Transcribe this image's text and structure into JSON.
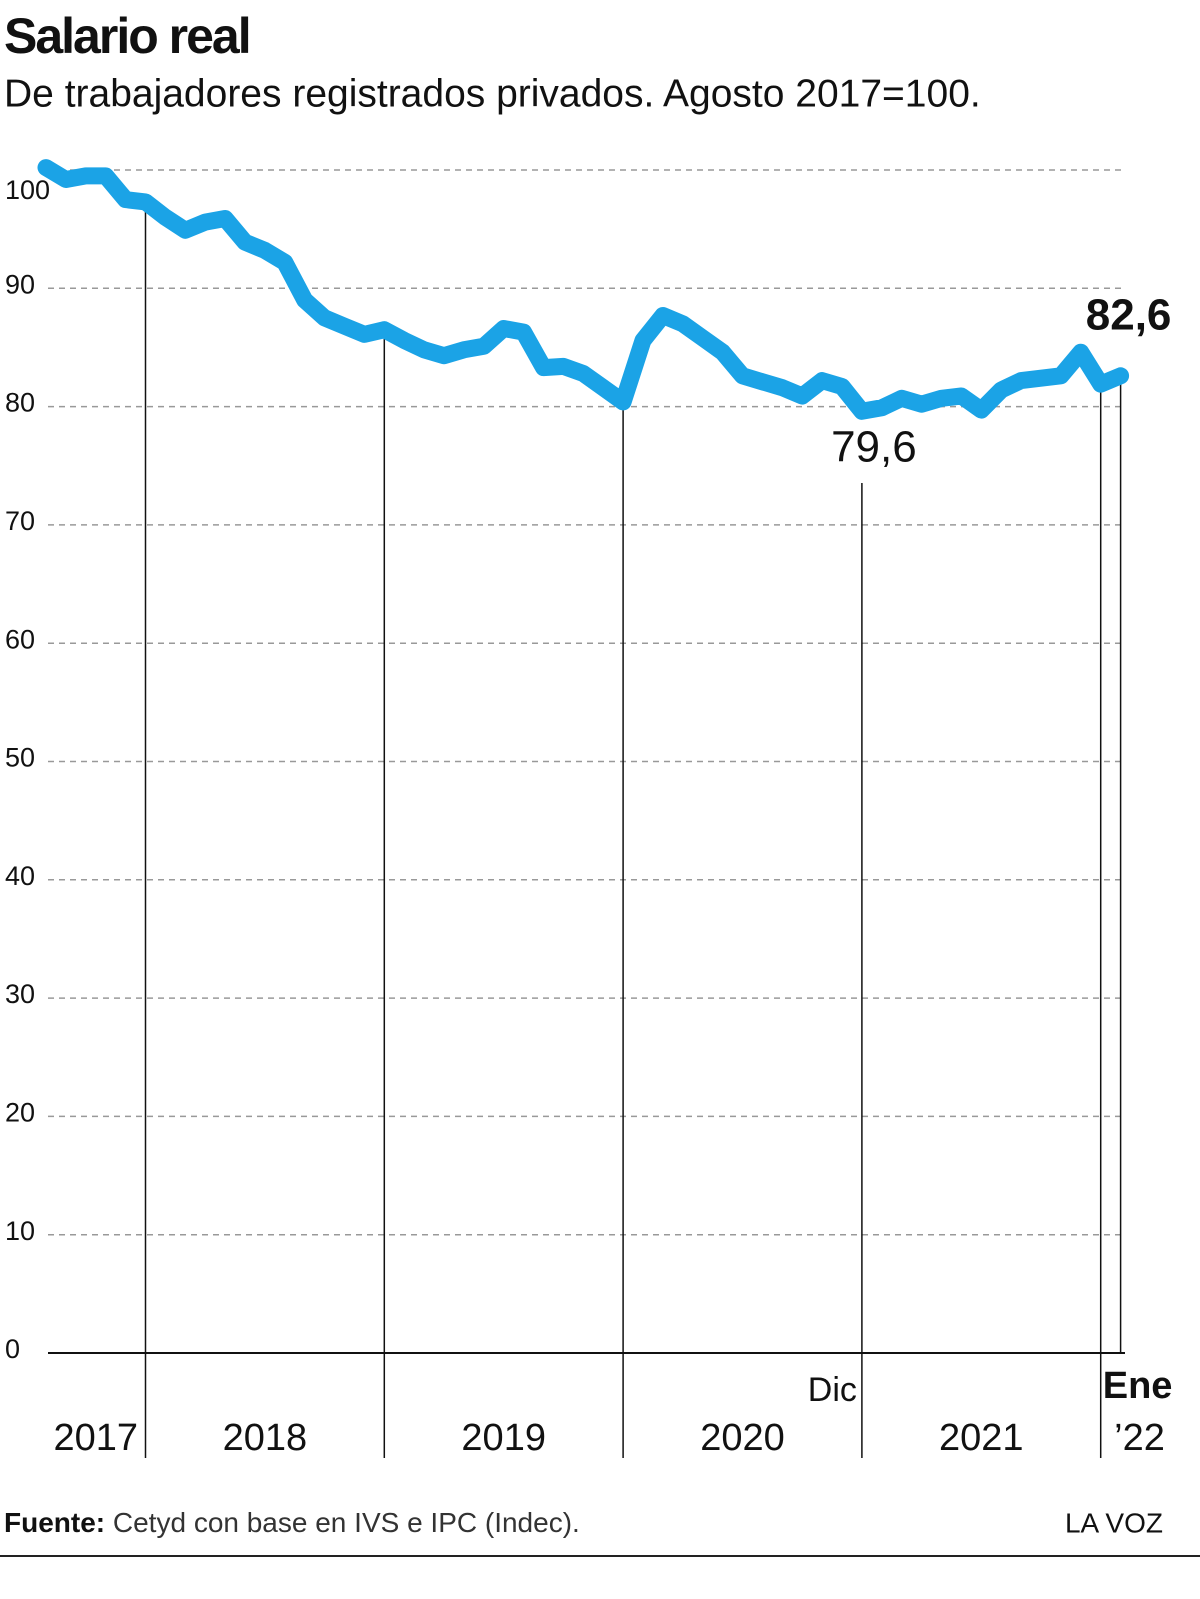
{
  "chart_data": {
    "type": "line",
    "title": "Salario real",
    "subtitle": "De trabajadores registrados privados. Agosto 2017=100.",
    "categories": [
      null,
      null,
      null,
      null,
      null,
      null,
      null,
      null,
      null,
      null,
      null,
      null,
      null,
      null,
      null,
      null,
      null,
      null,
      null,
      null,
      null,
      null,
      null,
      null,
      null,
      null,
      null,
      null,
      null,
      null,
      null,
      null,
      null,
      null,
      null,
      null,
      null,
      null,
      null,
      null,
      null,
      "Dic",
      null,
      null,
      null,
      null,
      null,
      null,
      null,
      null,
      null,
      null,
      null,
      null,
      "Ene"
    ],
    "values": [
      100.2,
      99.2,
      99.5,
      99.5,
      97.5,
      97.3,
      96.0,
      94.9,
      95.6,
      95.9,
      93.9,
      93.2,
      92.2,
      89.0,
      87.5,
      86.8,
      86.1,
      86.5,
      85.6,
      84.8,
      84.3,
      84.8,
      85.1,
      86.6,
      86.3,
      83.3,
      83.4,
      82.8,
      81.6,
      80.4,
      85.6,
      87.7,
      87.0,
      85.8,
      84.6,
      82.6,
      82.1,
      81.6,
      80.9,
      82.2,
      81.7,
      79.6,
      79.9,
      80.7,
      80.2,
      80.7,
      80.9,
      79.7,
      81.4,
      82.2,
      82.4,
      82.6,
      84.6,
      81.9,
      82.6
    ],
    "value_labels": [
      null,
      null,
      null,
      null,
      null,
      null,
      null,
      null,
      null,
      null,
      null,
      null,
      null,
      null,
      null,
      null,
      null,
      null,
      null,
      null,
      null,
      null,
      null,
      null,
      null,
      null,
      null,
      null,
      null,
      null,
      null,
      null,
      null,
      null,
      null,
      null,
      null,
      null,
      null,
      null,
      null,
      "79,6",
      null,
      null,
      null,
      null,
      null,
      null,
      null,
      null,
      null,
      null,
      null,
      null,
      "82,6"
    ],
    "color": "#1ba3e6",
    "x_sections": [
      "2017",
      "2018",
      "2019",
      "2020",
      "2021",
      "’22"
    ],
    "ylim": [
      0,
      100
    ],
    "yticks": [
      0,
      10,
      20,
      30,
      40,
      50,
      60,
      70,
      80,
      90,
      100
    ],
    "grid": true,
    "source_label": "Fuente:",
    "source": "Cetyd con base en IVS e IPC (Indec).",
    "brand": "LA VOZ"
  }
}
